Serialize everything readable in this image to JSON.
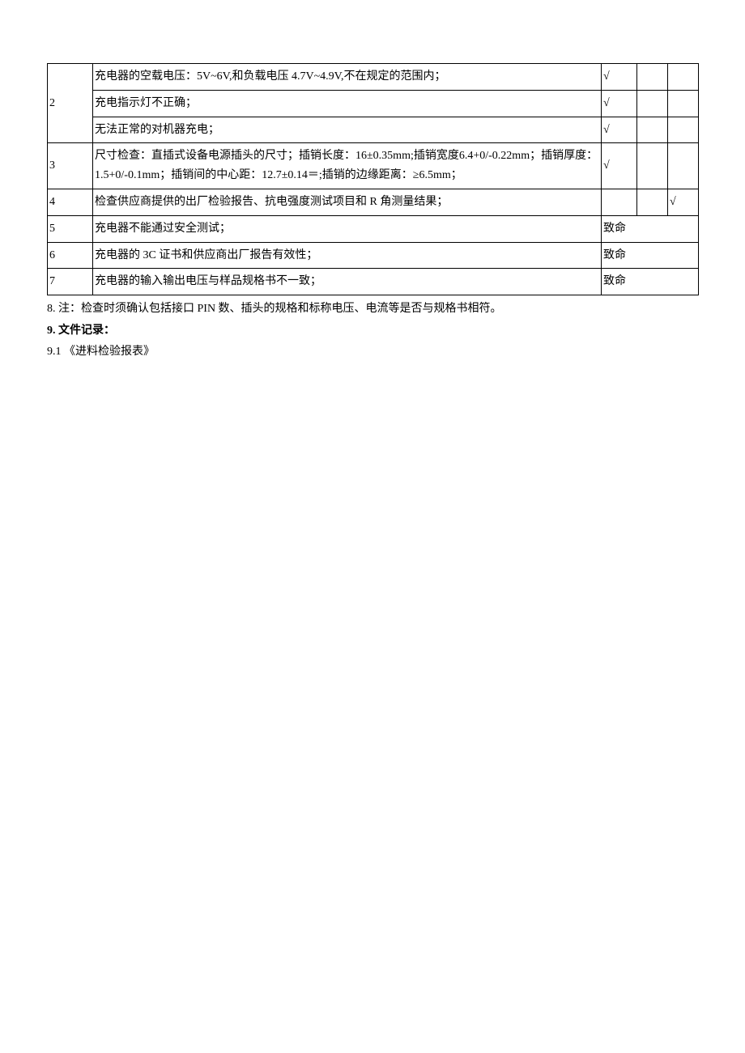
{
  "table": {
    "rows": [
      {
        "num": "",
        "desc": "充电器的空载电压：5V~6V,和负载电压 4.7V~4.9V,不在规定的范围内；",
        "c1": "√",
        "c2": "",
        "c3": ""
      },
      {
        "num": "2",
        "desc": "充电指示灯不正确；",
        "c1": "√",
        "c2": "",
        "c3": ""
      },
      {
        "num": "",
        "desc": "无法正常的对机器充电；",
        "c1": "√",
        "c2": "",
        "c3": ""
      },
      {
        "num": "3",
        "desc": "尺寸检查：直插式设备电源插头的尺寸；插销长度：16±0.35mm;插销宽度6.4+0/-0.22mm；插销厚度：1.5+0/-0.1mm；插销间的中心距：12.7±0.14＝;插销的边缘距离：≥6.5mm；",
        "c1": "√",
        "c2": "",
        "c3": ""
      },
      {
        "num": "4",
        "desc": "检查供应商提供的出厂检验报告、抗电强度测试项目和 R 角测量结果；",
        "c1": "",
        "c2": "",
        "c3": "√"
      },
      {
        "num": "5",
        "desc": "充电器不能通过安全测试；",
        "c1": "致命",
        "c2": "",
        "c3": ""
      },
      {
        "num": "6",
        "desc": "充电器的 3C 证书和供应商出厂报告有效性；",
        "c1": "致命",
        "c2": "",
        "c3": ""
      },
      {
        "num": "7",
        "desc": "充电器的输入输出电压与样品规格书不一致；",
        "c1": "致命",
        "c2": "",
        "c3": ""
      }
    ],
    "merge_r2_span": 3,
    "fatal_span": 3
  },
  "notes": {
    "n8": "8.  注：检查时须确认包括接口 PIN 数、插头的规格和标称电压、电流等是否与规格书相符。",
    "n9": "9.  文件记录：",
    "n91": "9.1  《进料检验报表》"
  },
  "colors": {
    "text": "#000000",
    "border": "#000000",
    "background": "#ffffff"
  }
}
